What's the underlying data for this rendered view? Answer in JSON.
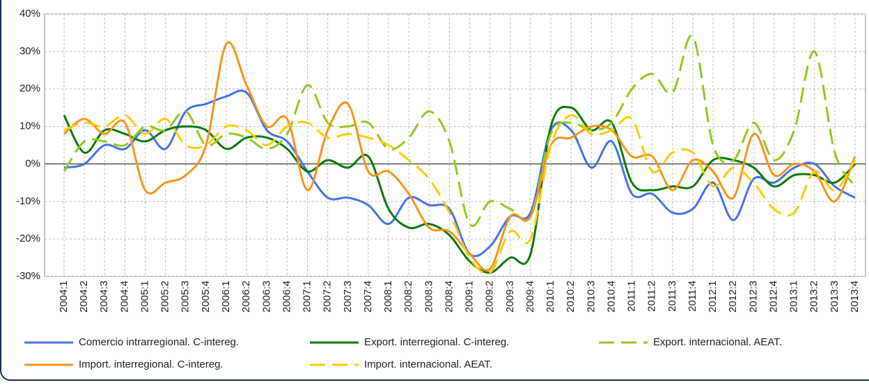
{
  "chart_data": {
    "type": "line",
    "categories": [
      "2004:1",
      "2004:2",
      "2004:3",
      "2004:4",
      "2005:1",
      "2005:2",
      "2005:3",
      "2005:4",
      "2006:1",
      "2006:2",
      "2006:3",
      "2006:4",
      "2007:1",
      "2007:2",
      "2007:3",
      "2007:4",
      "2008:1",
      "2008:2",
      "2008:3",
      "2008:4",
      "2009:1",
      "2009:2",
      "2009:3",
      "2009:4",
      "2010:1",
      "2010:2",
      "2010:3",
      "2010:4",
      "2011:1",
      "2011:2",
      "2011:3",
      "2011:4",
      "2012:1",
      "2012:2",
      "2012:3",
      "2012:4",
      "2013:1",
      "2013:2",
      "2013:3",
      "2013:4"
    ],
    "series": [
      {
        "name": "Comercio intrarregional. C-intereg.",
        "color": "#4472e8",
        "dashed": false,
        "values": [
          -1,
          0,
          5,
          4,
          9,
          4,
          14,
          16,
          18,
          19,
          9,
          6,
          -2,
          -9,
          -9,
          -11,
          -16,
          -9,
          -11,
          -12,
          -24,
          -22,
          -14,
          -13,
          9,
          9,
          -1,
          6,
          -8,
          -8,
          -13,
          -12,
          -5,
          -15,
          -4,
          -5,
          -1,
          0,
          -6,
          -9
        ]
      },
      {
        "name": "Export. interregional. C-intereg.",
        "color": "#0a7a0a",
        "dashed": false,
        "values": [
          13,
          3,
          9,
          8,
          6,
          9,
          10,
          9,
          4,
          7,
          7,
          4,
          -2,
          1,
          -1,
          2,
          -12,
          -17,
          -16,
          -19,
          -26,
          -29,
          -25,
          -24,
          10,
          15,
          9,
          11,
          -5,
          -7,
          -6,
          -6,
          1,
          1,
          -1,
          -6,
          -3,
          -3,
          -5,
          0
        ]
      },
      {
        "name": "Export. internacional. AEAT.",
        "color": "#92c91e",
        "dashed": true,
        "values": [
          -2,
          6,
          6,
          5,
          10,
          9,
          14,
          5,
          8,
          7,
          4,
          8,
          21,
          11,
          10,
          11,
          4,
          7,
          14,
          6,
          -16,
          -10,
          -12,
          -14,
          8,
          11,
          9,
          11,
          20,
          24,
          19,
          34,
          5,
          1,
          11,
          1,
          9,
          30,
          3,
          -6
        ]
      },
      {
        "name": "Import. interregional. C-intereg.",
        "color": "#f7941d",
        "dashed": false,
        "values": [
          8,
          12,
          8,
          11,
          -7,
          -5,
          -3,
          5,
          32,
          21,
          10,
          12,
          -7,
          9,
          16,
          -2,
          -2,
          -8,
          -17,
          -18,
          -24,
          -28,
          -14,
          -14,
          5,
          7,
          10,
          9,
          2,
          2,
          -7,
          1,
          -2,
          -9,
          8,
          -3,
          0,
          -2,
          -10,
          2
        ]
      },
      {
        "name": "Import. internacional. AEAT.",
        "color": "#ffcc00",
        "dashed": true,
        "values": [
          9,
          11,
          10,
          13,
          8,
          12,
          5,
          5,
          10,
          9,
          5,
          10,
          11,
          7,
          8,
          7,
          5,
          1,
          -4,
          -13,
          -25,
          -29,
          -18,
          -20,
          5,
          13,
          8,
          9,
          12,
          -2,
          3,
          3,
          -6,
          -1,
          -5,
          -12,
          -13,
          -2,
          -7,
          1
        ]
      }
    ],
    "ylim": [
      -30,
      40
    ],
    "yticks": [
      {
        "value": -30,
        "label": "-30%"
      },
      {
        "value": -20,
        "label": "-20%"
      },
      {
        "value": -10,
        "label": "-10%"
      },
      {
        "value": 0,
        "label": "0%"
      },
      {
        "value": 10,
        "label": "10%"
      },
      {
        "value": 20,
        "label": "20%"
      },
      {
        "value": 30,
        "label": "30%"
      },
      {
        "value": 40,
        "label": "40%"
      }
    ],
    "grid": true,
    "legend": "bottom"
  }
}
